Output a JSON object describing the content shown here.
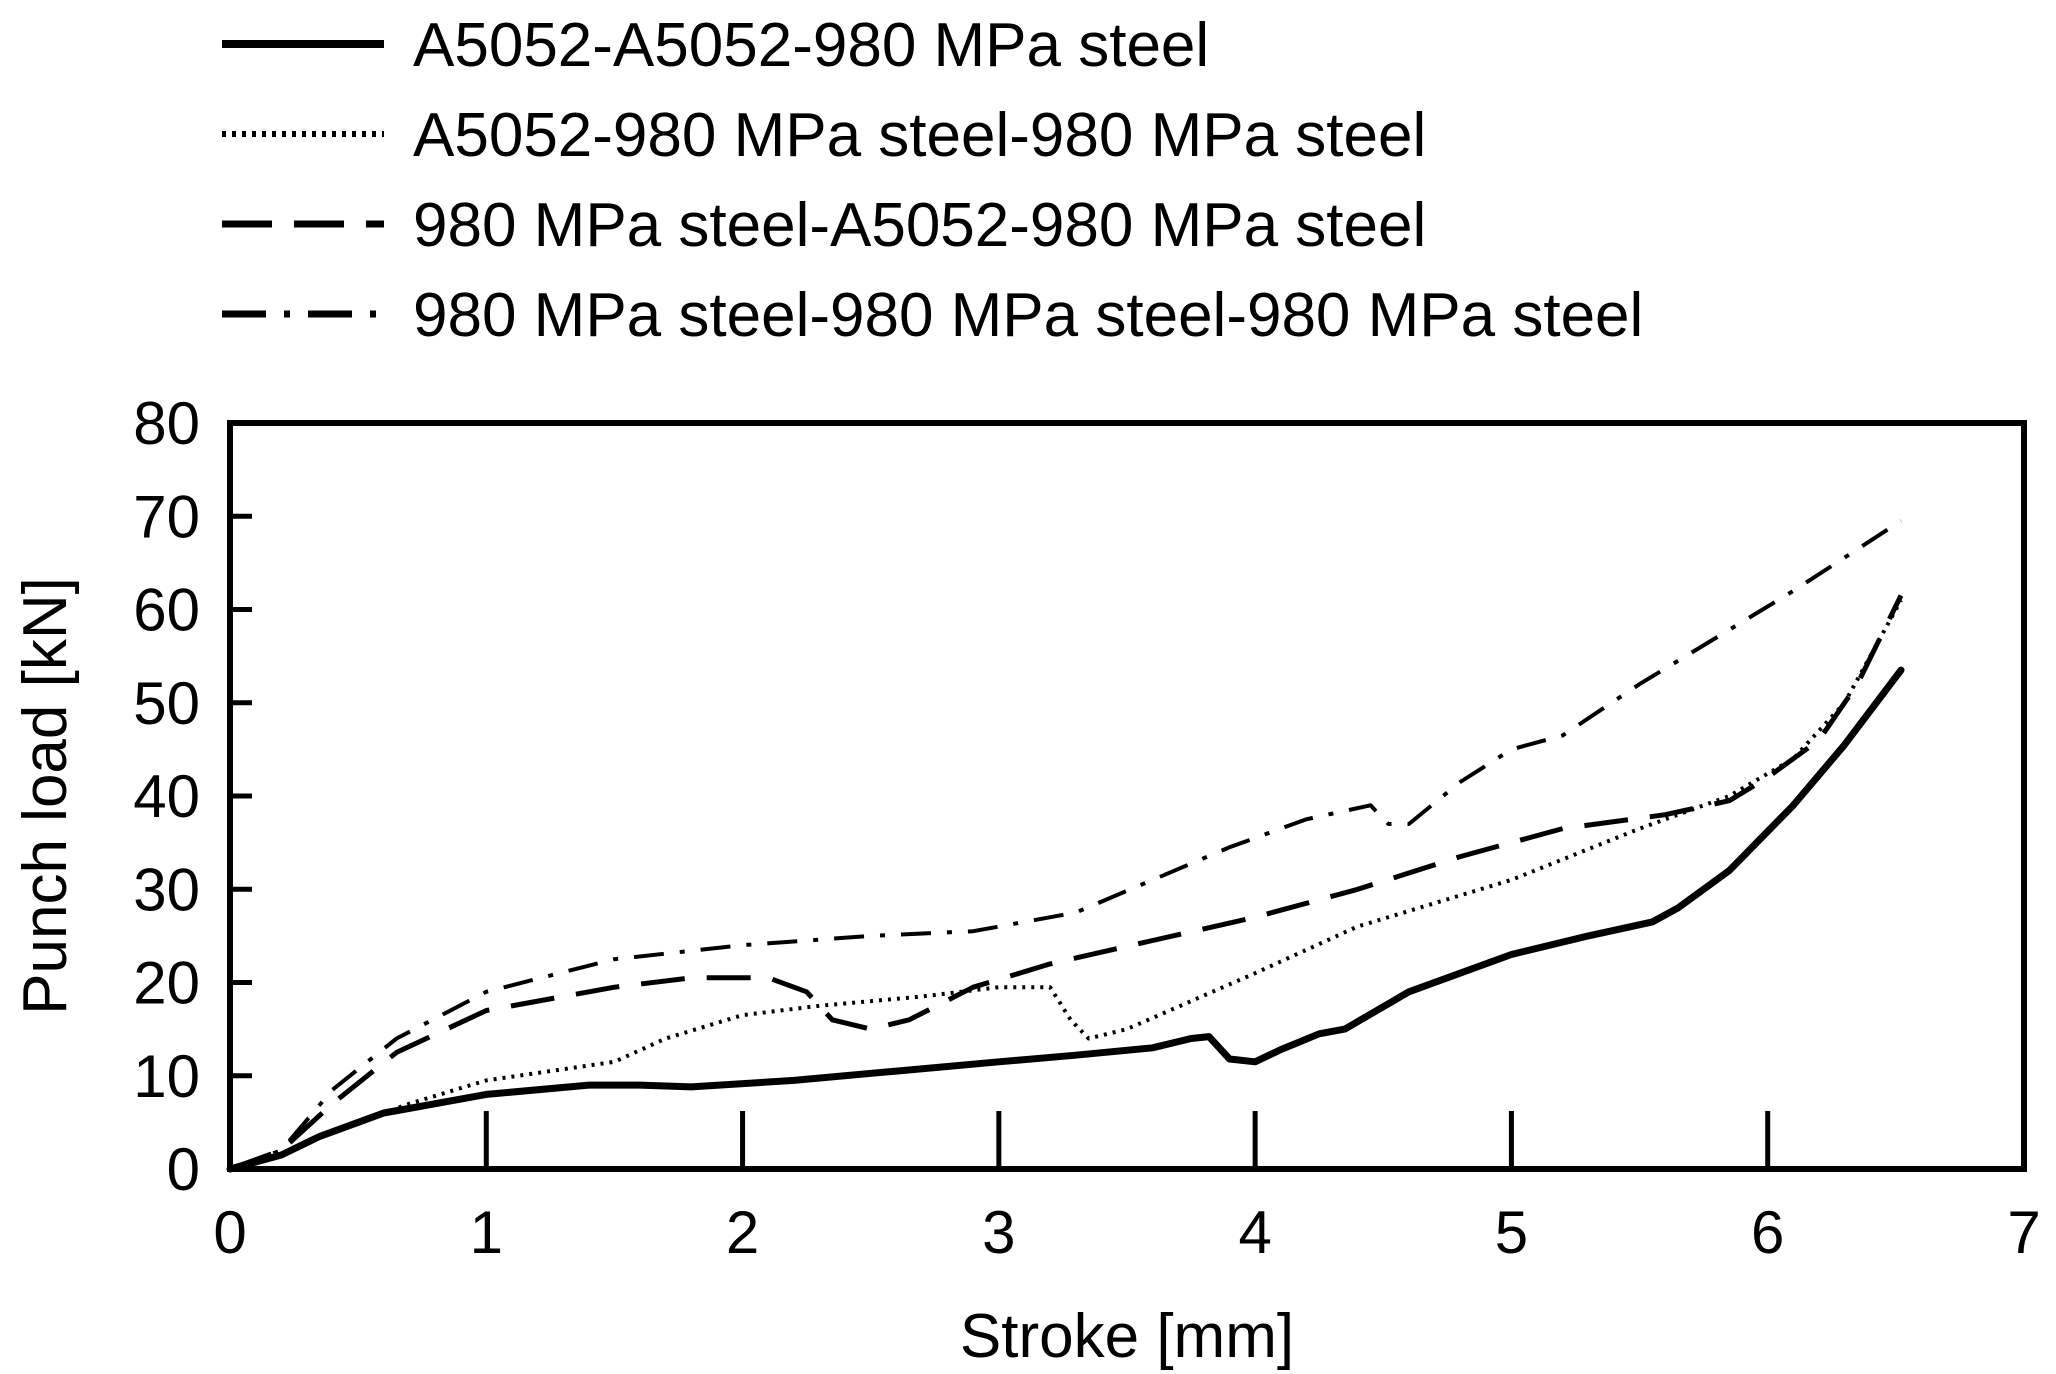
{
  "chart_data": {
    "type": "line",
    "title": "",
    "xlabel": "Stroke [mm]",
    "ylabel": "Punch load [kN]",
    "xlim": [
      0,
      7
    ],
    "ylim": [
      0,
      80
    ],
    "xticks": [
      0,
      1,
      2,
      3,
      4,
      5,
      6,
      7
    ],
    "yticks": [
      0,
      10,
      20,
      30,
      40,
      50,
      60,
      70,
      80
    ],
    "xtick_labels": [
      "0",
      "1",
      "2",
      "3",
      "4",
      "5",
      "6",
      "7"
    ],
    "ytick_labels": [
      "0",
      "10",
      "20",
      "30",
      "40",
      "50",
      "60",
      "70",
      "80"
    ],
    "grid": false,
    "legend_position": "top",
    "series": [
      {
        "name": "A5052-A5052-980 MPa steel",
        "style": "solid",
        "color": "#000000",
        "x": [
          0,
          0.2,
          0.35,
          0.6,
          1.0,
          1.4,
          1.6,
          1.8,
          2.2,
          2.6,
          3.0,
          3.3,
          3.6,
          3.75,
          3.82,
          3.9,
          4.0,
          4.1,
          4.25,
          4.35,
          4.6,
          5.0,
          5.3,
          5.55,
          5.65,
          5.85,
          6.1,
          6.3,
          6.52
        ],
        "y": [
          0,
          1.5,
          3.5,
          6,
          8,
          9,
          9,
          8.8,
          9.5,
          10.5,
          11.5,
          12.2,
          13,
          14,
          14.2,
          11.8,
          11.5,
          12.8,
          14.5,
          15,
          19,
          23,
          25,
          26.5,
          28,
          32,
          39,
          45.5,
          53.5
        ]
      },
      {
        "name": "A5052-980 MPa steel-980 MPa steel",
        "style": "dotted",
        "color": "#000000",
        "x": [
          0,
          0.2,
          0.4,
          0.7,
          1.0,
          1.5,
          1.7,
          2.0,
          2.3,
          2.7,
          3.0,
          3.2,
          3.28,
          3.35,
          3.5,
          4.0,
          4.4,
          5.0,
          5.5,
          5.85,
          6.1,
          6.3,
          6.52
        ],
        "y": [
          0,
          1.5,
          4,
          7,
          9.5,
          11.5,
          14,
          16.5,
          17.5,
          18.5,
          19.5,
          19.5,
          16,
          14,
          15,
          21,
          26,
          31,
          36.5,
          40,
          44,
          50,
          61
        ]
      },
      {
        "name": "980 MPa steel-A5052-980 MPa steel",
        "style": "dashed",
        "color": "#000000",
        "x": [
          0,
          0.2,
          0.4,
          0.65,
          1.0,
          1.5,
          1.8,
          2.1,
          2.25,
          2.35,
          2.5,
          2.65,
          2.9,
          3.2,
          3.6,
          4.0,
          4.4,
          4.8,
          5.2,
          5.6,
          5.85,
          6.0,
          6.2,
          6.35,
          6.52
        ],
        "y": [
          0,
          2,
          7,
          12.5,
          17,
          19.5,
          20.5,
          20.5,
          19,
          16,
          15,
          16,
          19.5,
          22,
          24.5,
          27,
          30,
          33.5,
          36.5,
          38,
          39.5,
          42,
          46,
          52,
          61.5
        ]
      },
      {
        "name": "980 MPa steel-980 MPa steel-980 MPa steel",
        "style": "dashdot",
        "color": "#000000",
        "x": [
          0,
          0.2,
          0.4,
          0.65,
          1.0,
          1.5,
          2.0,
          2.5,
          2.9,
          3.3,
          3.6,
          3.9,
          4.2,
          4.45,
          4.52,
          4.6,
          4.8,
          5.0,
          5.2,
          5.5,
          5.8,
          6.1,
          6.52
        ],
        "y": [
          0,
          2,
          8.5,
          14,
          19,
          22.5,
          24,
          25,
          25.5,
          27.5,
          31,
          34.5,
          37.5,
          39,
          37,
          37,
          41.5,
          45,
          46.5,
          52,
          57,
          62,
          69.5
        ]
      }
    ]
  }
}
